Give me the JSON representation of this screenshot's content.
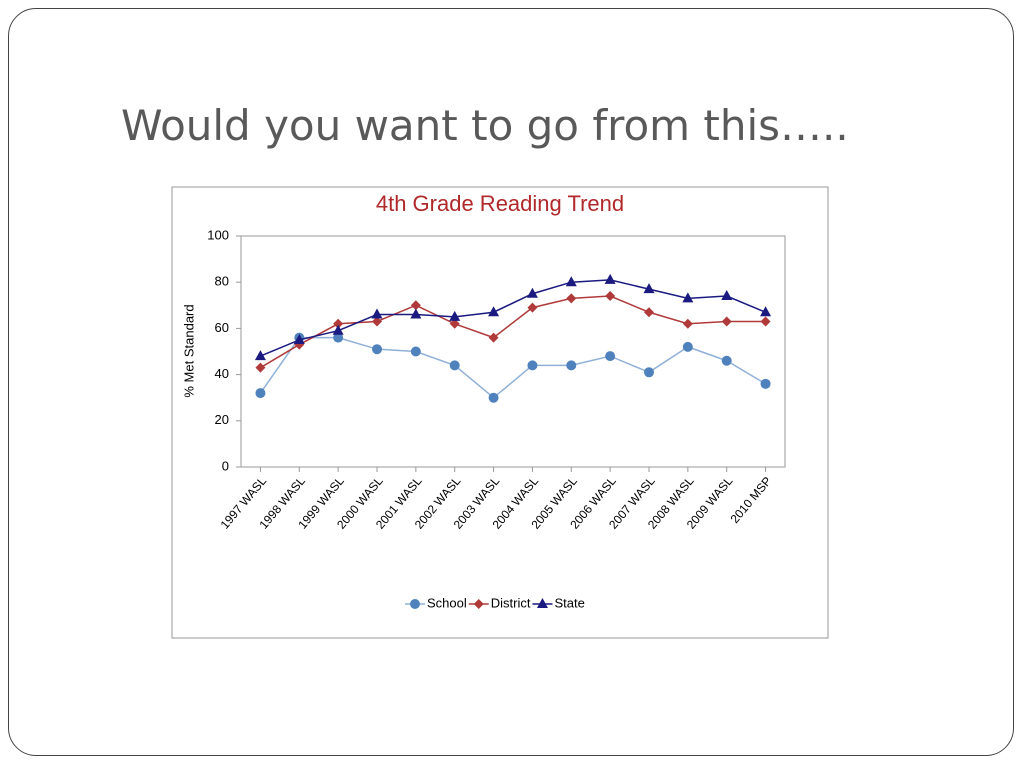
{
  "slide": {
    "title": "Would you want to go from this….."
  },
  "chart_data": {
    "type": "line",
    "title": "4th Grade Reading Trend",
    "y_label": "% Met Standard",
    "categories": [
      "1997 WASL",
      "1998 WASL",
      "1999 WASL",
      "2000 WASL",
      "2001 WASL",
      "2002 WASL",
      "2003 WASL",
      "2004 WASL",
      "2005 WASL",
      "2006 WASL",
      "2007 WASL",
      "2008 WASL",
      "2009 WASL",
      "2010 MSP"
    ],
    "series": [
      {
        "name": "School",
        "color": "#4f81bd",
        "marker": "circle",
        "values": [
          32,
          56,
          56,
          51,
          50,
          44,
          30,
          44,
          44,
          48,
          41,
          52,
          46,
          36
        ]
      },
      {
        "name": "District",
        "color": "#b03a3a",
        "marker": "diamond",
        "values": [
          43,
          53,
          62,
          63,
          70,
          62,
          56,
          69,
          73,
          74,
          67,
          62,
          63,
          63
        ]
      },
      {
        "name": "State",
        "color": "#1a1a80",
        "marker": "triangle",
        "values": [
          48,
          55,
          59,
          66,
          66,
          65,
          67,
          75,
          80,
          81,
          77,
          73,
          74,
          67
        ]
      }
    ],
    "ylim": [
      0,
      100
    ],
    "yticks": [
      0,
      20,
      40,
      60,
      80,
      100
    ],
    "grid": false,
    "legend": "bottom"
  }
}
